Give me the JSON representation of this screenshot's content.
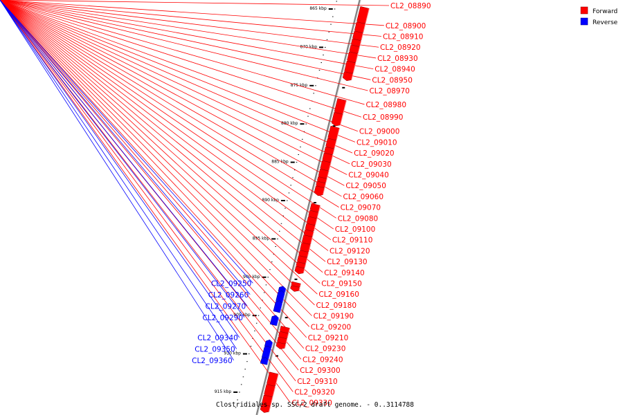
{
  "title": "Clostridiales sp. SSC/2 draft genome. - 0..3114788",
  "legend": [
    {
      "label": "Forward",
      "color": "#ff0000"
    },
    {
      "label": "Reverse",
      "color": "#0000ff"
    }
  ],
  "colors": {
    "forward": "#ff0000",
    "reverse": "#0000ff",
    "backbone": "#808080"
  },
  "ticks": [
    {
      "label": "865 kbp",
      "kbp": 865
    },
    {
      "label": "870 kbp",
      "kbp": 870
    },
    {
      "label": "875 kbp",
      "kbp": 875
    },
    {
      "label": "880 kbp",
      "kbp": 880
    },
    {
      "label": "885 kbp",
      "kbp": 885
    },
    {
      "label": "890 kbp",
      "kbp": 890
    },
    {
      "label": "895 kbp",
      "kbp": 895
    },
    {
      "label": "900 kbp",
      "kbp": 900
    },
    {
      "label": "905 kbp",
      "kbp": 905
    },
    {
      "label": "910 kbp",
      "kbp": 910
    },
    {
      "label": "915 kbp",
      "kbp": 915
    }
  ],
  "genes": [
    {
      "name": "CL2_08890",
      "strand": "forward",
      "start_kbp": 864.6,
      "end_kbp": 866.5
    },
    {
      "name": "CL2_08900",
      "strand": "forward",
      "start_kbp": 866.6,
      "end_kbp": 867.7
    },
    {
      "name": "CL2_08910",
      "strand": "forward",
      "start_kbp": 867.8,
      "end_kbp": 868.7
    },
    {
      "name": "CL2_08920",
      "strand": "forward",
      "start_kbp": 868.8,
      "end_kbp": 869.5
    },
    {
      "name": "CL2_08930",
      "strand": "forward",
      "start_kbp": 869.6,
      "end_kbp": 870.4
    },
    {
      "name": "CL2_08940",
      "strand": "forward",
      "start_kbp": 870.5,
      "end_kbp": 871.6
    },
    {
      "name": "CL2_08950",
      "strand": "forward",
      "start_kbp": 871.7,
      "end_kbp": 873.0
    },
    {
      "name": "CL2_08970",
      "strand": "forward",
      "start_kbp": 873.1,
      "end_kbp": 873.9
    },
    {
      "name": "CL2_08980",
      "strand": "forward",
      "start_kbp": 876.6,
      "end_kbp": 878.3
    },
    {
      "name": "CL2_08990",
      "strand": "forward",
      "start_kbp": 878.4,
      "end_kbp": 879.8
    },
    {
      "name": "CL2_09000",
      "strand": "forward",
      "start_kbp": 880.2,
      "end_kbp": 881.7
    },
    {
      "name": "CL2_09010",
      "strand": "forward",
      "start_kbp": 881.8,
      "end_kbp": 882.8
    },
    {
      "name": "CL2_09020",
      "strand": "forward",
      "start_kbp": 882.9,
      "end_kbp": 883.6
    },
    {
      "name": "CL2_09030",
      "strand": "forward",
      "start_kbp": 883.7,
      "end_kbp": 884.6
    },
    {
      "name": "CL2_09040",
      "strand": "forward",
      "start_kbp": 884.7,
      "end_kbp": 885.7
    },
    {
      "name": "CL2_09050",
      "strand": "forward",
      "start_kbp": 885.8,
      "end_kbp": 886.7
    },
    {
      "name": "CL2_09060",
      "strand": "forward",
      "start_kbp": 886.8,
      "end_kbp": 887.3
    },
    {
      "name": "CL2_09070",
      "strand": "forward",
      "start_kbp": 887.4,
      "end_kbp": 887.9
    },
    {
      "name": "CL2_09080",
      "strand": "forward",
      "start_kbp": 888.0,
      "end_kbp": 888.9
    },
    {
      "name": "CL2_09100",
      "strand": "forward",
      "start_kbp": 890.3,
      "end_kbp": 891.1
    },
    {
      "name": "CL2_09110",
      "strand": "forward",
      "start_kbp": 891.2,
      "end_kbp": 891.9
    },
    {
      "name": "CL2_09120",
      "strand": "forward",
      "start_kbp": 892.0,
      "end_kbp": 892.8
    },
    {
      "name": "CL2_09130",
      "strand": "forward",
      "start_kbp": 892.9,
      "end_kbp": 893.6
    },
    {
      "name": "CL2_09140",
      "strand": "forward",
      "start_kbp": 893.7,
      "end_kbp": 894.3
    },
    {
      "name": "CL2_09150",
      "strand": "forward",
      "start_kbp": 894.4,
      "end_kbp": 895.3
    },
    {
      "name": "CL2_09160",
      "strand": "forward",
      "start_kbp": 895.4,
      "end_kbp": 896.3
    },
    {
      "name": "CL2_09180",
      "strand": "forward",
      "start_kbp": 896.4,
      "end_kbp": 897.0
    },
    {
      "name": "CL2_09190",
      "strand": "forward",
      "start_kbp": 897.1,
      "end_kbp": 897.8
    },
    {
      "name": "CL2_09200",
      "strand": "forward",
      "start_kbp": 897.9,
      "end_kbp": 898.4
    },
    {
      "name": "CL2_09210",
      "strand": "forward",
      "start_kbp": 898.5,
      "end_kbp": 899.1
    },
    {
      "name": "CL2_09230",
      "strand": "forward",
      "start_kbp": 900.5,
      "end_kbp": 900.9
    },
    {
      "name": "CL2_09240",
      "strand": "forward",
      "start_kbp": 901.0,
      "end_kbp": 901.4
    },
    {
      "name": "CL2_09300",
      "strand": "forward",
      "start_kbp": 906.3,
      "end_kbp": 906.9
    },
    {
      "name": "CL2_09310",
      "strand": "forward",
      "start_kbp": 907.0,
      "end_kbp": 907.6
    },
    {
      "name": "CL2_09320",
      "strand": "forward",
      "start_kbp": 907.7,
      "end_kbp": 908.3
    },
    {
      "name": "CL2_09330",
      "strand": "forward",
      "start_kbp": 908.4,
      "end_kbp": 908.9
    },
    {
      "name": "CL2_09250",
      "strand": "reverse",
      "start_kbp": 901.6,
      "end_kbp": 902.1
    },
    {
      "name": "CL2_09260",
      "strand": "reverse",
      "start_kbp": 902.2,
      "end_kbp": 903.4
    },
    {
      "name": "CL2_09270",
      "strand": "reverse",
      "start_kbp": 903.5,
      "end_kbp": 904.7
    },
    {
      "name": "CL2_09290",
      "strand": "reverse",
      "start_kbp": 905.4,
      "end_kbp": 906.4
    },
    {
      "name": "CL2_09340",
      "strand": "reverse",
      "start_kbp": 908.6,
      "end_kbp": 909.3
    },
    {
      "name": "CL2_09350",
      "strand": "reverse",
      "start_kbp": 909.4,
      "end_kbp": 910.8
    },
    {
      "name": "CL2_09360",
      "strand": "reverse",
      "start_kbp": 910.9,
      "end_kbp": 911.5
    },
    {
      "name": "",
      "strand": "forward",
      "start_kbp": 912.3,
      "end_kbp": 913.8
    },
    {
      "name": "",
      "strand": "forward",
      "start_kbp": 913.9,
      "end_kbp": 915.2
    },
    {
      "name": "",
      "strand": "forward",
      "start_kbp": 915.3,
      "end_kbp": 916.4
    },
    {
      "name": "",
      "strand": "forward",
      "start_kbp": 916.5,
      "end_kbp": 917.2
    }
  ]
}
